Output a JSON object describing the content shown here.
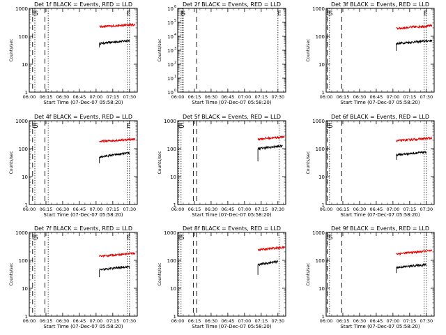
{
  "figure": {
    "xlabel_prefix": "Start Time (",
    "start_time": "07-Dec-07 05:58:20",
    "xlabel_suffix": ")",
    "ylabel": "Counts/sec",
    "title_suffix": " BLACK = Events, RED = LLD",
    "line_colors": {
      "events": "#000000",
      "lld": "#e00000"
    },
    "x_tick_labels": [
      "06:00",
      "06:15",
      "06:30",
      "06:45",
      "07:00",
      "07:15",
      "07:30"
    ],
    "marker_labels": {
      "E": "E",
      "S": "S"
    }
  },
  "chart_data": [
    {
      "type": "line",
      "title": "Det 1f BLACK = Events, RED = LLD",
      "detector": "1f",
      "yscale": "log",
      "ylim": [
        1,
        1000
      ],
      "xlim": [
        "06:00",
        "07:37"
      ],
      "y_tick_labels": [
        "1",
        "10",
        "100",
        "1000"
      ],
      "series": [
        {
          "name": "Events",
          "color": "#000000",
          "x_start": "07:03",
          "x_end": "07:30",
          "start": [
            40,
            50
          ],
          "level": [
            55,
            70
          ]
        },
        {
          "name": "LLD",
          "color": "#e00000",
          "x_start": "07:03",
          "x_end": "07:35",
          "level": [
            220,
            260
          ]
        }
      ],
      "markers": [
        {
          "label": "E",
          "time": "06:03",
          "style": "dashed"
        },
        {
          "label": "S",
          "time": "06:05",
          "style": "dotted"
        },
        {
          "label": "",
          "time": "06:14",
          "style": "dashed"
        },
        {
          "label": "",
          "time": "06:17",
          "style": "dotted"
        },
        {
          "label": "E",
          "time": "07:28",
          "style": "dotted"
        },
        {
          "label": "",
          "time": "07:30",
          "style": "dotted"
        }
      ]
    },
    {
      "type": "line",
      "title": "Det 2f BLACK = Events, RED = LLD",
      "detector": "2f",
      "yscale": "log",
      "ylim": [
        1,
        1000000
      ],
      "xlim": [
        "06:00",
        "07:37"
      ],
      "y_tick_labels": [
        "10^0",
        "10^1",
        "10^2",
        "10^3",
        "10^4",
        "10^5",
        "10^6"
      ],
      "series": [],
      "markers": [
        {
          "label": "E",
          "time": "06:03",
          "style": "dotted"
        },
        {
          "label": "S",
          "time": "06:04",
          "style": "dotted"
        },
        {
          "label": "",
          "time": "06:05",
          "style": "dotted"
        },
        {
          "label": "",
          "time": "06:17",
          "style": "dashed"
        },
        {
          "label": "E",
          "time": "07:30",
          "style": "dotted"
        }
      ]
    },
    {
      "type": "line",
      "title": "Det 3f BLACK = Events, RED = LLD",
      "detector": "3f",
      "yscale": "log",
      "ylim": [
        1,
        1000
      ],
      "xlim": [
        "06:00",
        "07:37"
      ],
      "y_tick_labels": [
        "1",
        "10",
        "100",
        "1000"
      ],
      "series": [
        {
          "name": "Events",
          "color": "#000000",
          "x_start": "07:03",
          "x_end": "07:35",
          "start": [
            30,
            40
          ],
          "level": [
            55,
            70
          ]
        },
        {
          "name": "LLD",
          "color": "#e00000",
          "x_start": "07:03",
          "x_end": "07:35",
          "level": [
            190,
            240
          ]
        }
      ],
      "markers": [
        {
          "label": "E",
          "time": "06:01",
          "style": "dashed"
        },
        {
          "label": "S",
          "time": "06:03",
          "style": "dotted"
        },
        {
          "label": "",
          "time": "06:14",
          "style": "dashed"
        },
        {
          "label": "E",
          "time": "07:28",
          "style": "dotted"
        },
        {
          "label": "",
          "time": "07:30",
          "style": "dotted"
        }
      ]
    },
    {
      "type": "line",
      "title": "Det 4f BLACK = Events, RED = LLD",
      "detector": "4f",
      "yscale": "log",
      "ylim": [
        1,
        1000
      ],
      "xlim": [
        "06:00",
        "07:37"
      ],
      "y_tick_labels": [
        "1",
        "10",
        "100",
        "1000"
      ],
      "series": [
        {
          "name": "Events",
          "color": "#000000",
          "x_start": "07:03",
          "x_end": "07:30",
          "start": [
            30,
            40
          ],
          "level": [
            50,
            70
          ]
        },
        {
          "name": "LLD",
          "color": "#e00000",
          "x_start": "07:03",
          "x_end": "07:35",
          "level": [
            180,
            220
          ]
        }
      ],
      "markers": [
        {
          "label": "E",
          "time": "06:03",
          "style": "dashed"
        },
        {
          "label": "S",
          "time": "06:05",
          "style": "dotted"
        },
        {
          "label": "",
          "time": "06:14",
          "style": "dashed"
        },
        {
          "label": "",
          "time": "06:17",
          "style": "dotted"
        },
        {
          "label": "E",
          "time": "07:28",
          "style": "dotted"
        },
        {
          "label": "",
          "time": "07:30",
          "style": "dotted"
        }
      ]
    },
    {
      "type": "line",
      "title": "Det 5f BLACK = Events, RED = LLD",
      "detector": "5f",
      "yscale": "log",
      "ylim": [
        1,
        1000
      ],
      "xlim": [
        "06:00",
        "07:37"
      ],
      "y_tick_labels": [
        "1",
        "10",
        "100",
        "1000"
      ],
      "series": [
        {
          "name": "Events",
          "color": "#000000",
          "x_start": "07:12",
          "x_end": "07:34",
          "start": [
            35,
            50
          ],
          "level": [
            100,
            125
          ]
        },
        {
          "name": "LLD",
          "color": "#e00000",
          "x_start": "07:12",
          "x_end": "07:36",
          "level": [
            220,
            265
          ]
        }
      ],
      "markers": [
        {
          "label": "E",
          "time": "06:01",
          "style": "dotted"
        },
        {
          "label": "S",
          "time": "06:03",
          "style": "dotted"
        },
        {
          "label": "",
          "time": "06:14",
          "style": "dashed"
        },
        {
          "label": "",
          "time": "06:17",
          "style": "dashed"
        },
        {
          "label": "",
          "time": "07:31",
          "style": "dotted"
        }
      ]
    },
    {
      "type": "line",
      "title": "Det 6f BLACK = Events, RED = LLD",
      "detector": "6f",
      "yscale": "log",
      "ylim": [
        1,
        1000
      ],
      "xlim": [
        "06:00",
        "07:37"
      ],
      "y_tick_labels": [
        "1",
        "10",
        "100",
        "1000"
      ],
      "series": [
        {
          "name": "Events",
          "color": "#000000",
          "x_start": "07:03",
          "x_end": "07:30",
          "start": [
            40,
            50
          ],
          "level": [
            60,
            75
          ]
        },
        {
          "name": "LLD",
          "color": "#e00000",
          "x_start": "07:03",
          "x_end": "07:35",
          "level": [
            190,
            240
          ]
        }
      ],
      "markers": [
        {
          "label": "E",
          "time": "06:01",
          "style": "dashed"
        },
        {
          "label": "S",
          "time": "06:03",
          "style": "dotted"
        },
        {
          "label": "",
          "time": "06:14",
          "style": "dashed"
        },
        {
          "label": "",
          "time": "07:28",
          "style": "dotted"
        },
        {
          "label": "",
          "time": "07:30",
          "style": "dotted"
        }
      ]
    },
    {
      "type": "line",
      "title": "Det 7f BLACK = Events, RED = LLD",
      "detector": "7f",
      "yscale": "log",
      "ylim": [
        1,
        1000
      ],
      "xlim": [
        "06:00",
        "07:37"
      ],
      "y_tick_labels": [
        "1",
        "10",
        "100",
        "1000"
      ],
      "series": [
        {
          "name": "Events",
          "color": "#000000",
          "x_start": "07:03",
          "x_end": "07:30",
          "start": [
            25,
            35
          ],
          "level": [
            45,
            60
          ]
        },
        {
          "name": "LLD",
          "color": "#e00000",
          "x_start": "07:03",
          "x_end": "07:35",
          "level": [
            140,
            180
          ]
        }
      ],
      "markers": [
        {
          "label": "E",
          "time": "06:03",
          "style": "dashed"
        },
        {
          "label": "S",
          "time": "06:05",
          "style": "dotted"
        },
        {
          "label": "",
          "time": "06:14",
          "style": "dashed"
        },
        {
          "label": "",
          "time": "06:17",
          "style": "dotted"
        },
        {
          "label": "E",
          "time": "07:28",
          "style": "dotted"
        },
        {
          "label": "",
          "time": "07:30",
          "style": "dotted"
        }
      ]
    },
    {
      "type": "line",
      "title": "Det 8f BLACK = Events, RED = LLD",
      "detector": "8f",
      "yscale": "log",
      "ylim": [
        1,
        1000
      ],
      "xlim": [
        "06:00",
        "07:37"
      ],
      "y_tick_labels": [
        "1",
        "10",
        "100",
        "1000"
      ],
      "series": [
        {
          "name": "Events",
          "color": "#000000",
          "x_start": "07:12",
          "x_end": "07:30",
          "start": [
            30,
            45
          ],
          "level": [
            70,
            90
          ]
        },
        {
          "name": "LLD",
          "color": "#e00000",
          "x_start": "07:12",
          "x_end": "07:36",
          "level": [
            240,
            290
          ]
        }
      ],
      "markers": [
        {
          "label": "E",
          "time": "06:01",
          "style": "dotted"
        },
        {
          "label": "S",
          "time": "06:03",
          "style": "dotted"
        },
        {
          "label": "",
          "time": "06:14",
          "style": "dashed"
        },
        {
          "label": "",
          "time": "06:17",
          "style": "dashed"
        },
        {
          "label": "",
          "time": "07:31",
          "style": "dotted"
        }
      ]
    },
    {
      "type": "line",
      "title": "Det 9f BLACK = Events, RED = LLD",
      "detector": "9f",
      "yscale": "log",
      "ylim": [
        1,
        1000
      ],
      "xlim": [
        "06:00",
        "07:37"
      ],
      "y_tick_labels": [
        "1",
        "10",
        "100",
        "1000"
      ],
      "series": [
        {
          "name": "Events",
          "color": "#000000",
          "x_start": "07:03",
          "x_end": "07:30",
          "start": [
            35,
            45
          ],
          "level": [
            55,
            70
          ]
        },
        {
          "name": "LLD",
          "color": "#e00000",
          "x_start": "07:03",
          "x_end": "07:35",
          "level": [
            170,
            220
          ]
        }
      ],
      "markers": [
        {
          "label": "E",
          "time": "06:01",
          "style": "dashed"
        },
        {
          "label": "S",
          "time": "06:03",
          "style": "dotted"
        },
        {
          "label": "",
          "time": "06:14",
          "style": "dashed"
        },
        {
          "label": "",
          "time": "07:28",
          "style": "dotted"
        },
        {
          "label": "",
          "time": "07:30",
          "style": "dotted"
        }
      ]
    }
  ]
}
